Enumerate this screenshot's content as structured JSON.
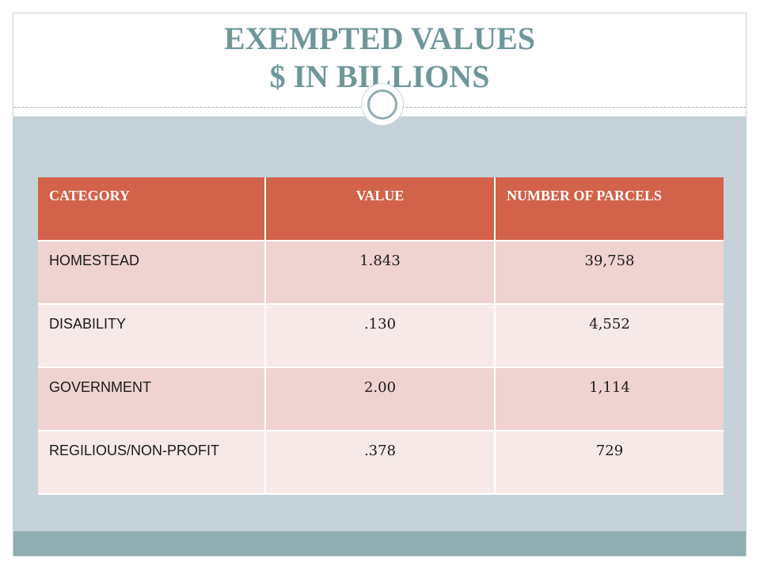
{
  "slide": {
    "title_line1": "EXEMPTED VALUES",
    "title_line2": "$ IN BILLIONS"
  },
  "table": {
    "headers": [
      "CATEGORY",
      "VALUE",
      "NUMBER OF PARCELS"
    ],
    "rows": [
      {
        "category": "HOMESTEAD",
        "value": "1.843",
        "parcels": "39,758"
      },
      {
        "category": "DISABILITY",
        "value": ".130",
        "parcels": "4,552"
      },
      {
        "category": "GOVERNMENT",
        "value": "2.00",
        "parcels": "1,114"
      },
      {
        "category": "REGILIOUS/NON-PROFIT",
        "value": ".378",
        "parcels": "729"
      }
    ]
  },
  "colors": {
    "title": "#6f979a",
    "header_bg": "#d2624a",
    "row_dark": "#efd3d0",
    "row_light": "#f6e9e8",
    "body_bg": "#c5d2d9",
    "bottom_bar": "#8eaeb1"
  },
  "icons": {
    "ornament": "circle-ring-icon"
  }
}
